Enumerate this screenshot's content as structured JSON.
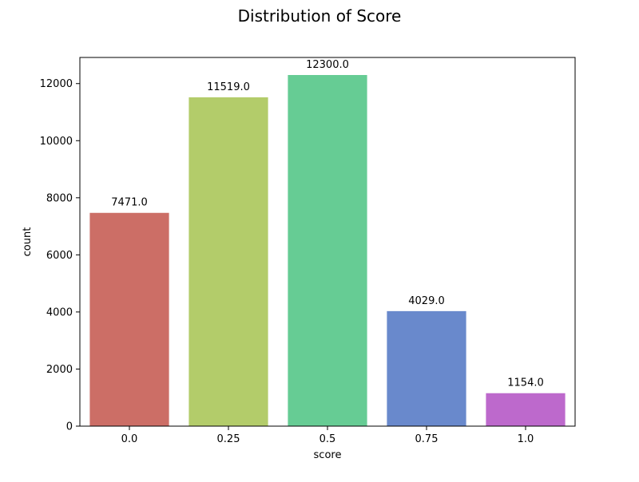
{
  "chart_data": {
    "type": "bar",
    "title": "Distribution of Score",
    "xlabel": "score",
    "ylabel": "count",
    "categories": [
      "0.0",
      "0.25",
      "0.5",
      "0.75",
      "1.0"
    ],
    "values": [
      7471,
      11519,
      12300,
      4029,
      1154
    ],
    "data_labels": [
      "7471.0",
      "11519.0",
      "12300.0",
      "4029.0",
      "1154.0"
    ],
    "yticks": [
      0,
      2000,
      4000,
      6000,
      8000,
      10000,
      12000
    ],
    "ytick_labels": [
      "0",
      "2000",
      "4000",
      "6000",
      "8000",
      "10000",
      "12000"
    ],
    "ylim": [
      0,
      12915
    ],
    "grid": false,
    "legend": "none",
    "colors": [
      "#cc6e66",
      "#b3cc6a",
      "#66cc94",
      "#6989cc",
      "#bd69cc"
    ]
  }
}
